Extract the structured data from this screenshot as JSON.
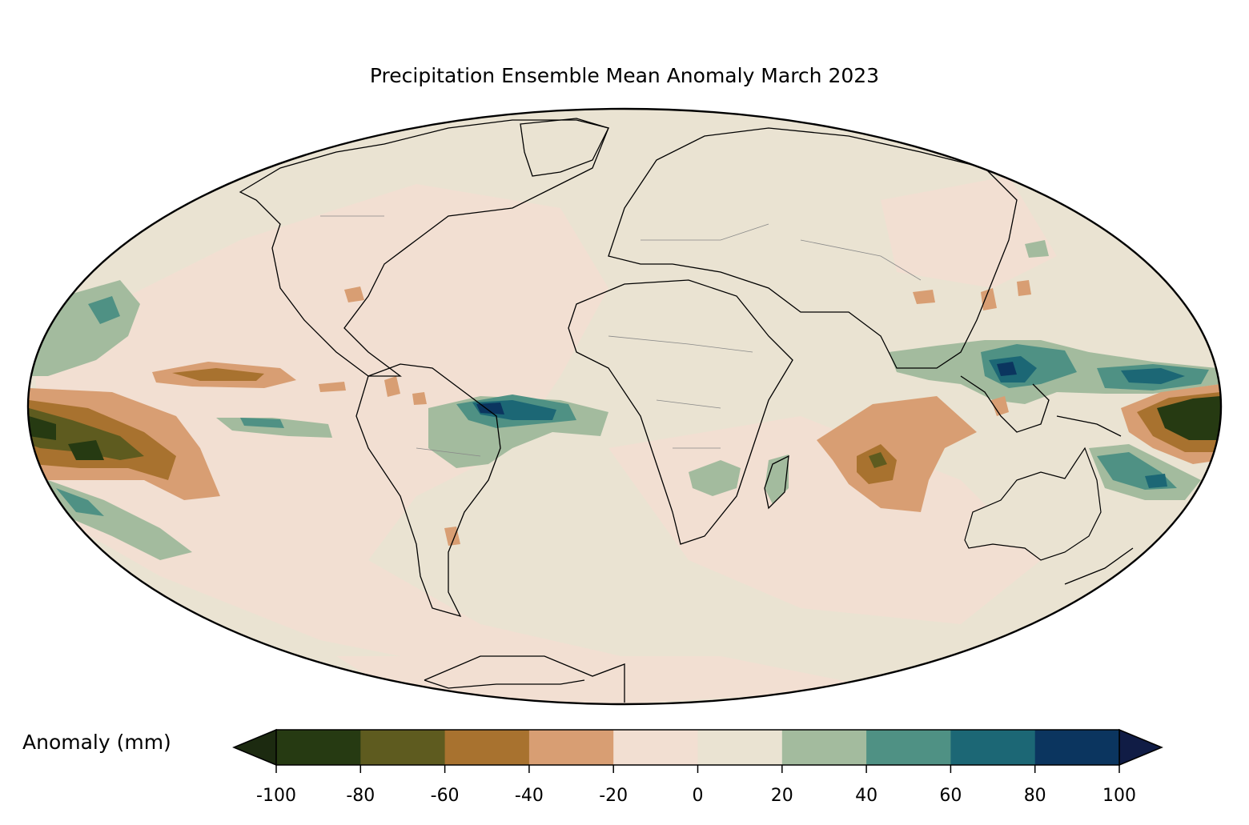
{
  "title": "Precipitation Ensemble Mean Anomaly March 2023",
  "colorbar": {
    "label": "Anomaly (mm)",
    "ticks": [
      "-100",
      "-80",
      "-60",
      "-40",
      "-20",
      "0",
      "20",
      "40",
      "60",
      "80",
      "100"
    ],
    "levels": [
      -100,
      -80,
      -60,
      -40,
      -20,
      0,
      20,
      40,
      60,
      80,
      100
    ],
    "colors": [
      "#263a12",
      "#5e5b1f",
      "#a8722f",
      "#d89e73",
      "#f2dfd2",
      "#eae3d2",
      "#a3bb9e",
      "#4f9184",
      "#1c6775",
      "#0b355f"
    ],
    "under_color": "#1c2a10",
    "over_color": "#101c45",
    "extend": "both"
  },
  "map": {
    "projection": "Mollweide",
    "land_color": "#eae3d2",
    "ocean_base_color": "#f2dfd2"
  }
}
